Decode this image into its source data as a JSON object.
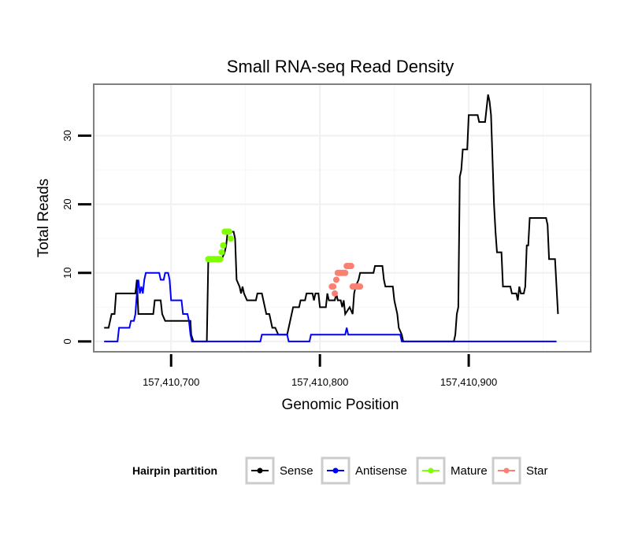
{
  "chart_data": {
    "type": "line",
    "title": "Small RNA-seq Read Density",
    "xlabel": "Genomic Position",
    "ylabel": "Total Reads",
    "xlim": [
      157410648,
      157410982
    ],
    "ylim": [
      -1.5,
      37.5
    ],
    "x_ticks": [
      157410700,
      157410800,
      157410900
    ],
    "x_tick_labels": [
      "157,410,700",
      "157,410,800",
      "157,410,900"
    ],
    "y_ticks": [
      0,
      10,
      20,
      30
    ],
    "y_tick_labels": [
      "0",
      "10",
      "20",
      "30"
    ],
    "grid": true,
    "legend": {
      "title": "Hairpin partition",
      "position": "bottom",
      "items": [
        {
          "name": "Sense",
          "color": "#000000"
        },
        {
          "name": "Antisense",
          "color": "#0000ff"
        },
        {
          "name": "Mature",
          "color": "#7fff00"
        },
        {
          "name": "Star",
          "color": "#fa8072"
        }
      ]
    },
    "series": [
      {
        "name": "Sense",
        "color": "#000000",
        "style": "line",
        "points": [
          [
            157410655,
            2
          ],
          [
            157410658,
            2
          ],
          [
            157410660,
            4
          ],
          [
            157410662,
            4
          ],
          [
            157410663,
            7
          ],
          [
            157410668,
            7
          ],
          [
            157410674,
            7
          ],
          [
            157410676,
            7
          ],
          [
            157410677,
            9
          ],
          [
            157410678,
            4
          ],
          [
            157410686,
            4
          ],
          [
            157410688,
            4
          ],
          [
            157410689,
            6
          ],
          [
            157410693,
            6
          ],
          [
            157410694,
            4
          ],
          [
            157410696,
            3
          ],
          [
            157410710,
            3
          ],
          [
            157410713,
            3
          ],
          [
            157410713.5,
            1
          ],
          [
            157410715,
            0
          ],
          [
            157410724,
            0
          ],
          [
            157410725,
            12
          ],
          [
            157410734,
            12
          ],
          [
            157410736,
            13
          ],
          [
            157410737,
            14
          ],
          [
            157410738,
            16
          ],
          [
            157410742,
            16
          ],
          [
            157410743,
            15
          ],
          [
            157410744,
            9
          ],
          [
            157410746,
            8
          ],
          [
            157410747,
            7
          ],
          [
            157410748,
            8
          ],
          [
            157410749,
            7
          ],
          [
            157410751,
            6
          ],
          [
            157410757,
            6
          ],
          [
            157410758,
            7
          ],
          [
            157410761,
            7
          ],
          [
            157410762,
            6
          ],
          [
            157410764,
            4
          ],
          [
            157410766,
            4
          ],
          [
            157410767,
            3
          ],
          [
            157410768,
            2
          ],
          [
            157410770,
            2
          ],
          [
            157410772,
            1
          ],
          [
            157410778,
            1
          ],
          [
            157410779,
            2
          ],
          [
            157410781,
            4
          ],
          [
            157410782,
            5
          ],
          [
            157410786,
            5
          ],
          [
            157410787,
            6
          ],
          [
            157410790,
            6
          ],
          [
            157410791,
            7
          ],
          [
            157410795,
            7
          ],
          [
            157410796,
            6
          ],
          [
            157410797,
            7
          ],
          [
            157410799,
            7
          ],
          [
            157410800,
            5
          ],
          [
            157410804,
            5
          ],
          [
            157410805,
            7
          ],
          [
            157410806,
            6
          ],
          [
            157410810,
            6
          ],
          [
            157410811,
            7
          ],
          [
            157410812,
            6
          ],
          [
            157410814,
            6
          ],
          [
            157410815,
            5
          ],
          [
            157410816,
            6
          ],
          [
            157410817,
            4
          ],
          [
            157410820,
            5
          ],
          [
            157410822,
            4
          ],
          [
            157410823,
            7
          ],
          [
            157410824,
            8
          ],
          [
            157410826,
            9
          ],
          [
            157410827,
            10
          ],
          [
            157410836,
            10
          ],
          [
            157410837,
            11
          ],
          [
            157410842,
            11
          ],
          [
            157410843,
            9
          ],
          [
            157410844,
            8
          ],
          [
            157410849,
            8
          ],
          [
            157410850,
            6
          ],
          [
            157410852,
            4
          ],
          [
            157410853,
            2
          ],
          [
            157410855,
            1
          ],
          [
            157410856,
            0
          ],
          [
            157410860,
            0
          ],
          [
            157410873,
            0
          ],
          [
            157410884,
            0
          ],
          [
            157410890,
            0
          ],
          [
            157410891,
            1
          ],
          [
            157410892,
            4
          ],
          [
            157410893,
            5
          ],
          [
            157410894,
            24
          ],
          [
            157410895,
            25
          ],
          [
            157410896,
            28
          ],
          [
            157410899,
            28
          ],
          [
            157410900,
            33
          ],
          [
            157410906,
            33
          ],
          [
            157410907,
            32
          ],
          [
            157410911,
            32
          ],
          [
            157410913,
            36
          ],
          [
            157410914,
            35
          ],
          [
            157410915,
            33
          ],
          [
            157410917,
            20
          ],
          [
            157410918,
            16
          ],
          [
            157410919,
            13
          ],
          [
            157410922,
            13
          ],
          [
            157410923,
            8
          ],
          [
            157410928,
            8
          ],
          [
            157410929,
            7
          ],
          [
            157410932,
            7
          ],
          [
            157410933,
            6
          ],
          [
            157410934,
            8
          ],
          [
            157410935,
            7
          ],
          [
            157410937,
            7
          ],
          [
            157410938,
            8
          ],
          [
            157410939,
            14
          ],
          [
            157410940,
            14
          ],
          [
            157410941,
            18
          ],
          [
            157410952,
            18
          ],
          [
            157410953,
            17
          ],
          [
            157410954,
            12
          ],
          [
            157410958,
            12
          ],
          [
            157410960,
            4
          ]
        ]
      },
      {
        "name": "Antisense",
        "color": "#0000ff",
        "style": "line",
        "points": [
          [
            157410655,
            0
          ],
          [
            157410664,
            0
          ],
          [
            157410665,
            2
          ],
          [
            157410672,
            2
          ],
          [
            157410673,
            3
          ],
          [
            157410675,
            3
          ],
          [
            157410676,
            4
          ],
          [
            157410677,
            7
          ],
          [
            157410678,
            9
          ],
          [
            157410679,
            7
          ],
          [
            157410680,
            8
          ],
          [
            157410681,
            7
          ],
          [
            157410682,
            9
          ],
          [
            157410683,
            10
          ],
          [
            157410692,
            10
          ],
          [
            157410693,
            9
          ],
          [
            157410695,
            9
          ],
          [
            157410696,
            10
          ],
          [
            157410698,
            10
          ],
          [
            157410699,
            9
          ],
          [
            157410700,
            6
          ],
          [
            157410705,
            6
          ],
          [
            157410707,
            6
          ],
          [
            157410708,
            4
          ],
          [
            157410711,
            4
          ],
          [
            157410712,
            3
          ],
          [
            157410713,
            1
          ],
          [
            157410714,
            0
          ],
          [
            157410760,
            0
          ],
          [
            157410761,
            1
          ],
          [
            157410778,
            1
          ],
          [
            157410779,
            0
          ],
          [
            157410793,
            0
          ],
          [
            157410794,
            1
          ],
          [
            157410817,
            1
          ],
          [
            157410818,
            2
          ],
          [
            157410819,
            1
          ],
          [
            157410854,
            1
          ],
          [
            157410855,
            0
          ],
          [
            157410959,
            0
          ]
        ]
      },
      {
        "name": "Mature",
        "color": "#7fff00",
        "style": "points",
        "points": [
          [
            157410725,
            12
          ],
          [
            157410726,
            12
          ],
          [
            157410727,
            12
          ],
          [
            157410728,
            12
          ],
          [
            157410729,
            12
          ],
          [
            157410730,
            12
          ],
          [
            157410731,
            12
          ],
          [
            157410732,
            12
          ],
          [
            157410733,
            12
          ],
          [
            157410734,
            13
          ],
          [
            157410735,
            14
          ],
          [
            157410736,
            16
          ],
          [
            157410737,
            16
          ],
          [
            157410738,
            16
          ],
          [
            157410739,
            16
          ],
          [
            157410740,
            15
          ]
        ]
      },
      {
        "name": "Star",
        "color": "#fa8072",
        "style": "points",
        "points": [
          [
            157410808,
            8
          ],
          [
            157410809,
            8
          ],
          [
            157410810,
            7
          ],
          [
            157410811,
            9
          ],
          [
            157410812,
            10
          ],
          [
            157410813,
            10
          ],
          [
            157410814,
            10
          ],
          [
            157410815,
            10
          ],
          [
            157410816,
            10
          ],
          [
            157410817,
            10
          ],
          [
            157410818,
            11
          ],
          [
            157410819,
            11
          ],
          [
            157410820,
            11
          ],
          [
            157410821,
            11
          ],
          [
            157410822,
            8
          ],
          [
            157410823,
            8
          ],
          [
            157410824,
            8
          ],
          [
            157410825,
            8
          ],
          [
            157410826,
            8
          ],
          [
            157410827,
            8
          ]
        ]
      }
    ]
  }
}
